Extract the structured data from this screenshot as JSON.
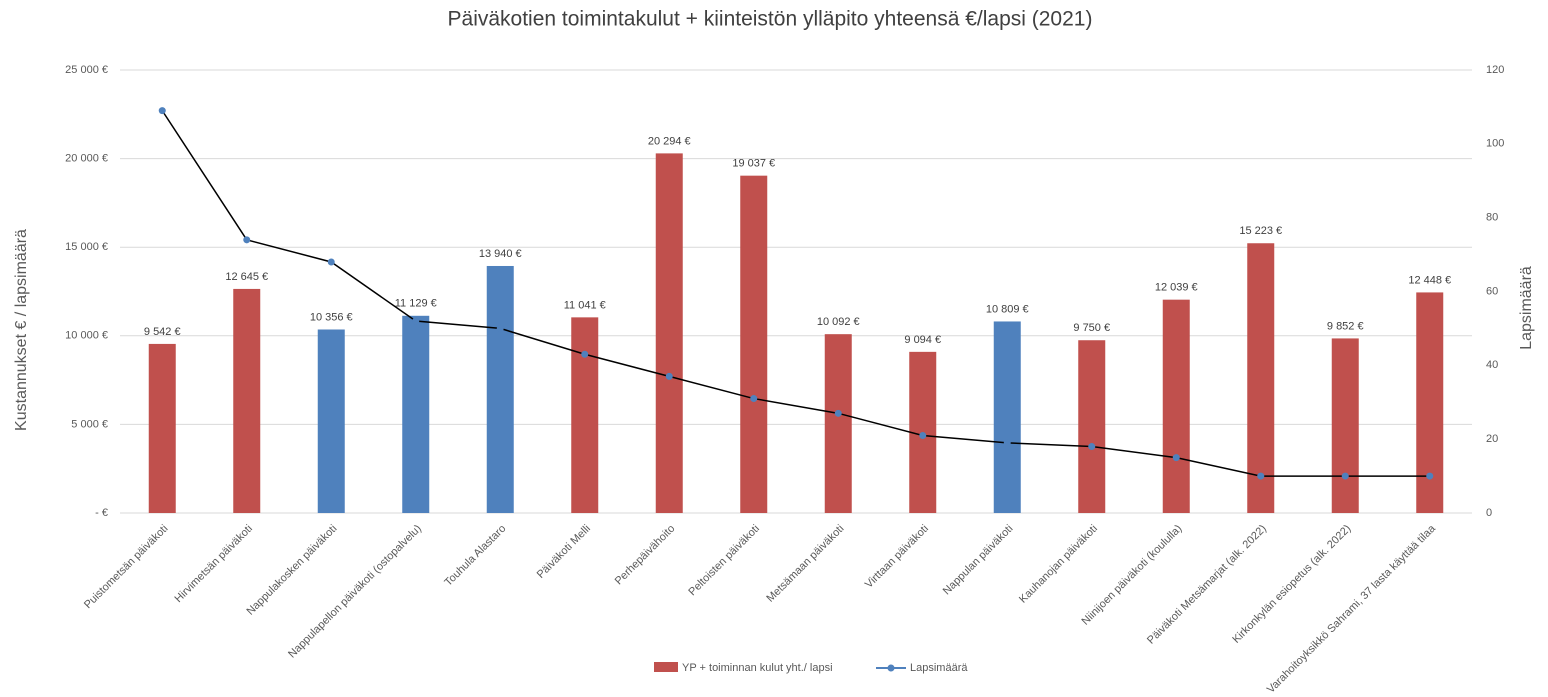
{
  "chart_data": {
    "type": "bar",
    "title": "Päiväkotien toimintakulut + kiinteistön ylläpito yhteensä €/lapsi (2021)",
    "y_label": "Kustannukset € / lapsimäärä",
    "y2_label": "Lapsimäärä",
    "categories": [
      "Puistometsän päiväkoti",
      "Hirvimetsän päiväkoti",
      "Nappulakosken päiväkoti",
      "Nappulapellon päiväkoti (ostopalvelu)",
      "Touhula Alastaro",
      "Päiväkoti Melli",
      "Perhepäivähoito",
      "Peltoisten päiväkoti",
      "Metsämaan päiväkoti",
      "Virttaan päiväkoti",
      "Nappulan päiväkoti",
      "Kauhanojan päiväkoti",
      "Niinijoen päiväkoti (koululla)",
      "Päiväkoti Metsämarjat (alk. 2022)",
      "Kirkonkylän esiopetus (alk. 2022)",
      "Varahoitoyksikkö Sahrami, 37 lasta käyttää tilaa"
    ],
    "series": [
      {
        "name": "YP + toiminnan kulut yht./ lapsi",
        "type": "bar",
        "color": "#c0504d",
        "colors": [
          "#c0504d",
          "#c0504d",
          "#4f81bd",
          "#4f81bd",
          "#4f81bd",
          "#c0504d",
          "#c0504d",
          "#c0504d",
          "#c0504d",
          "#c0504d",
          "#4f81bd",
          "#c0504d",
          "#c0504d",
          "#c0504d",
          "#c0504d",
          "#c0504d"
        ],
        "values": [
          9542,
          12645,
          10356,
          11129,
          13940,
          11041,
          20294,
          19037,
          10092,
          9094,
          10809,
          9750,
          12039,
          15223,
          9852,
          12448
        ],
        "value_labels": [
          "9 542 €",
          "12 645 €",
          "10 356 €",
          "11 129 €",
          "13 940 €",
          "11 041 €",
          "20 294 €",
          "19 037 €",
          "10 092 €",
          "9 094 €",
          "10 809 €",
          "9 750 €",
          "12 039 €",
          "15 223 €",
          "9 852 €",
          "12 448 €"
        ]
      },
      {
        "name": "Lapsimäärä",
        "type": "line",
        "axis": "y2",
        "color": "#4f81bd",
        "line_color": "#000000",
        "values": [
          109,
          74,
          68,
          52,
          50,
          43,
          37,
          31,
          27,
          21,
          19,
          18,
          15,
          10,
          10,
          10
        ]
      }
    ],
    "ylim": [
      0,
      25000
    ],
    "yticks": [
      {
        "value": 0,
        "label": " -  €"
      },
      {
        "value": 5000,
        "label": "5 000 €"
      },
      {
        "value": 10000,
        "label": "10 000 €"
      },
      {
        "value": 15000,
        "label": "15 000 €"
      },
      {
        "value": 20000,
        "label": "20 000 €"
      },
      {
        "value": 25000,
        "label": "25 000 €"
      }
    ],
    "y2lim": [
      0,
      120
    ],
    "y2ticks": [
      0,
      20,
      40,
      60,
      80,
      100,
      120
    ],
    "grid": true,
    "legend": "bottom"
  }
}
